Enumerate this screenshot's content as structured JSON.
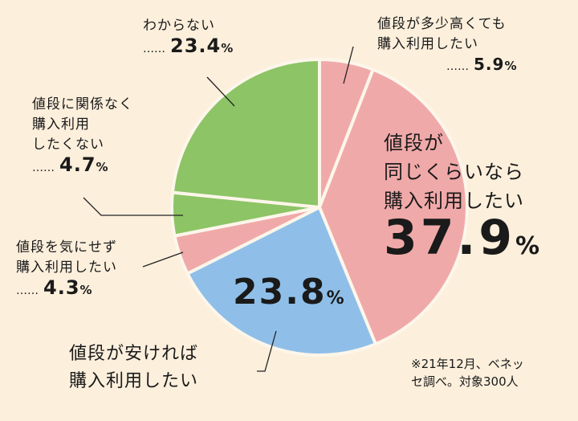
{
  "chart_data": {
    "type": "pie",
    "start": "top",
    "direction": "clockwise",
    "slices": [
      {
        "label": "値段が多少高くても購入利用したい",
        "value": 5.9,
        "color": "#f0a9a9"
      },
      {
        "label": "値段が同じくらいなら購入利用したい",
        "value": 37.9,
        "color": "#f0a9a9"
      },
      {
        "label": "値段が安ければ購入利用したい",
        "value": 23.8,
        "color": "#8fbfe9"
      },
      {
        "label": "値段を気にせず購入利用したい",
        "value": 4.3,
        "color": "#f0a9a9"
      },
      {
        "label": "値段に関係なく購入利用したくない",
        "value": 4.7,
        "color": "#8dc466"
      },
      {
        "label": "わからない",
        "value": 23.4,
        "color": "#8dc466"
      }
    ],
    "labels": {
      "s0": {
        "lines": [
          "値段が多少高くても",
          "購入利用したい"
        ],
        "dots": "……",
        "value": "5.9",
        "unit": "%"
      },
      "s1": {
        "lines": [
          "値段が",
          "同じくらいなら",
          "購入利用したい"
        ],
        "value": "37.9",
        "unit": "%"
      },
      "s2": {
        "lines": [
          "値段が安ければ",
          "購入利用したい"
        ],
        "value": "23.8",
        "unit": "%"
      },
      "s3": {
        "lines": [
          "値段を気にせず",
          "購入利用したい"
        ],
        "dots": "……",
        "value": "4.3",
        "unit": "%"
      },
      "s4": {
        "lines": [
          "値段に関係なく",
          "購入利用",
          "したくない"
        ],
        "dots": "……",
        "value": "4.7",
        "unit": "%"
      },
      "s5": {
        "lines": [
          "わからない"
        ],
        "dots": "……",
        "value": "23.4",
        "unit": "%"
      }
    },
    "note": [
      "※21年12月、ベネッ",
      "セ調べ。対象300人"
    ]
  }
}
